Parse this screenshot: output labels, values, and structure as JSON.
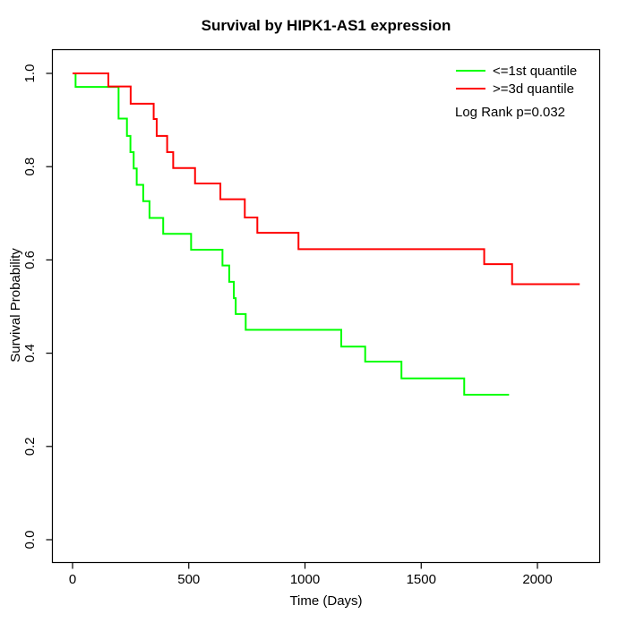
{
  "title": "Survival by HIPK1-AS1 expression",
  "chart_data": {
    "type": "line",
    "subtype": "kaplan-meier-step",
    "title": "Survival by HIPK1-AS1 expression",
    "xlabel": "Time (Days)",
    "ylabel": "Survival Probability",
    "xlim": [
      0,
      2270
    ],
    "ylim": [
      0,
      1.05
    ],
    "grid": false,
    "x_ticks": [
      0,
      500,
      1000,
      1500,
      2000
    ],
    "y_ticks": [
      "0.0",
      "0.2",
      "0.4",
      "0.6",
      "0.8",
      "1.0"
    ],
    "legend_position": "top-right",
    "annotation": "Log Rank p=0.032",
    "series": [
      {
        "name": "<=1st quantile",
        "color": "#00ff00",
        "end_time": 1878,
        "points": [
          [
            13,
            0.971
          ],
          [
            198,
            0.903
          ],
          [
            234,
            0.866
          ],
          [
            249,
            0.831
          ],
          [
            263,
            0.796
          ],
          [
            276,
            0.761
          ],
          [
            304,
            0.726
          ],
          [
            331,
            0.69
          ],
          [
            390,
            0.656
          ],
          [
            510,
            0.622
          ],
          [
            645,
            0.588
          ],
          [
            674,
            0.553
          ],
          [
            694,
            0.518
          ],
          [
            702,
            0.484
          ],
          [
            745,
            0.45
          ],
          [
            1156,
            0.414
          ],
          [
            1259,
            0.382
          ],
          [
            1415,
            0.346
          ],
          [
            1685,
            0.311
          ]
        ]
      },
      {
        "name": ">=3d quantile",
        "color": "#ff0000",
        "end_time": 2182,
        "points": [
          [
            154,
            0.972
          ],
          [
            250,
            0.935
          ],
          [
            349,
            0.902
          ],
          [
            362,
            0.866
          ],
          [
            407,
            0.831
          ],
          [
            433,
            0.797
          ],
          [
            527,
            0.764
          ],
          [
            636,
            0.73
          ],
          [
            741,
            0.691
          ],
          [
            795,
            0.658
          ],
          [
            972,
            0.623
          ],
          [
            1771,
            0.591
          ],
          [
            1891,
            0.548
          ]
        ]
      }
    ]
  }
}
